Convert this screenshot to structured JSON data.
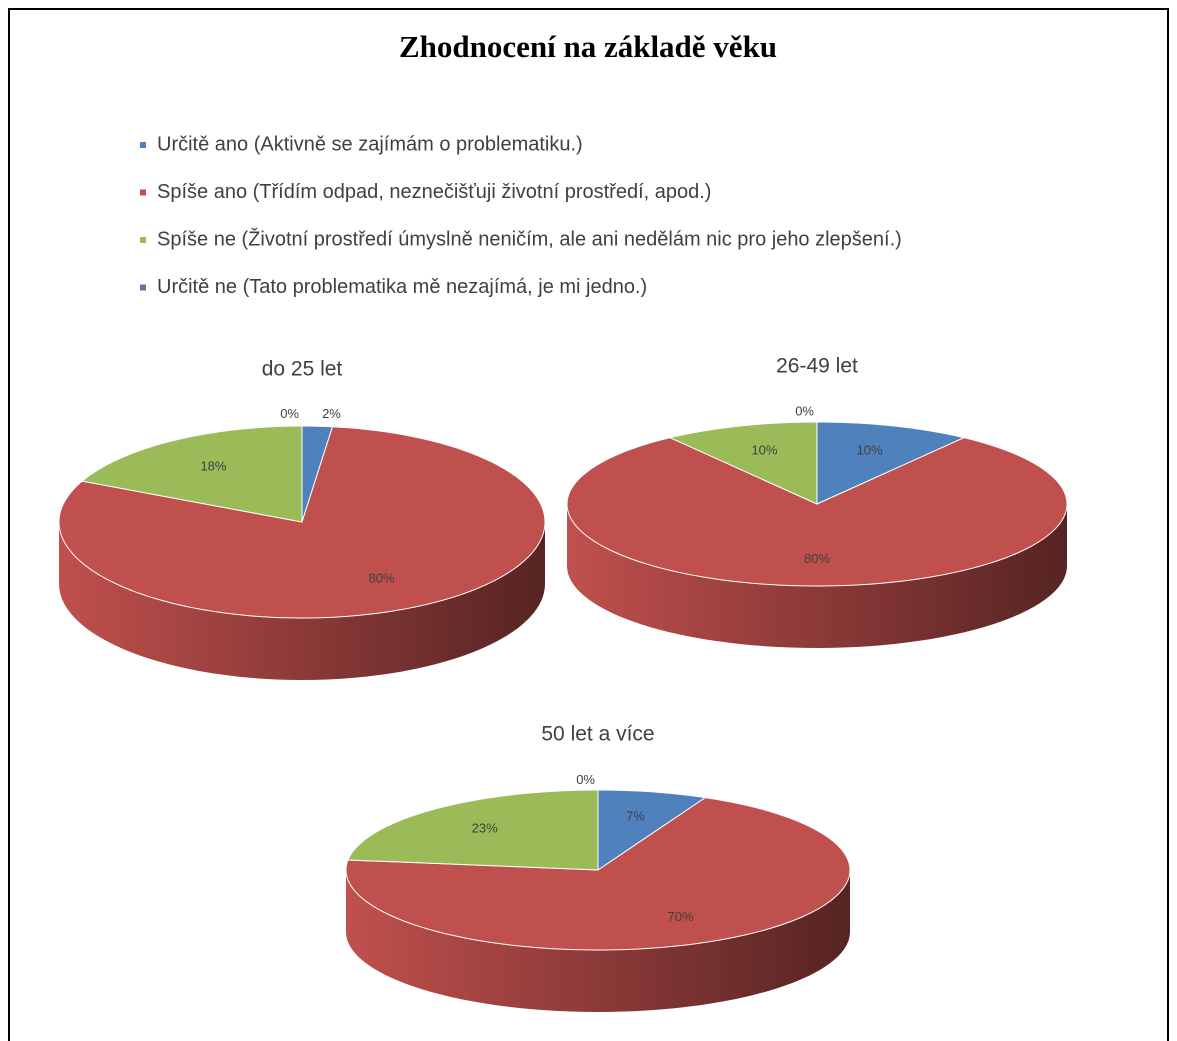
{
  "title": "Zhodnocení na základě věku",
  "legend": {
    "labels": [
      "Určitě ano (Aktivně se zajímám o problematiku.)",
      "Spíše ano (Třídím odpad, neznečišťuji životní prostředí, apod.)",
      "Spíše ne (Životní prostředí úmyslně neničím, ale ani nedělám nic pro jeho zlepšení.)",
      "Určitě ne (Tato problematika mě nezajímá, je mi jedno.)"
    ],
    "colors": [
      "#4f81bd",
      "#c0504d",
      "#9bbb59",
      "#8064a2"
    ]
  },
  "chart_data": [
    {
      "type": "pie",
      "title": "do 25 let",
      "values": [
        2,
        80,
        18,
        0
      ],
      "value_labels": [
        "2%",
        "80%",
        "18%",
        "0%"
      ]
    },
    {
      "type": "pie",
      "title": "26-49 let",
      "values": [
        10,
        80,
        10,
        0
      ],
      "value_labels": [
        "10%",
        "80%",
        "10%",
        "0%"
      ]
    },
    {
      "type": "pie",
      "title": "50 let a více",
      "values": [
        7,
        70,
        23,
        0
      ],
      "value_labels": [
        "7%",
        "70%",
        "23%",
        "0%"
      ]
    }
  ]
}
